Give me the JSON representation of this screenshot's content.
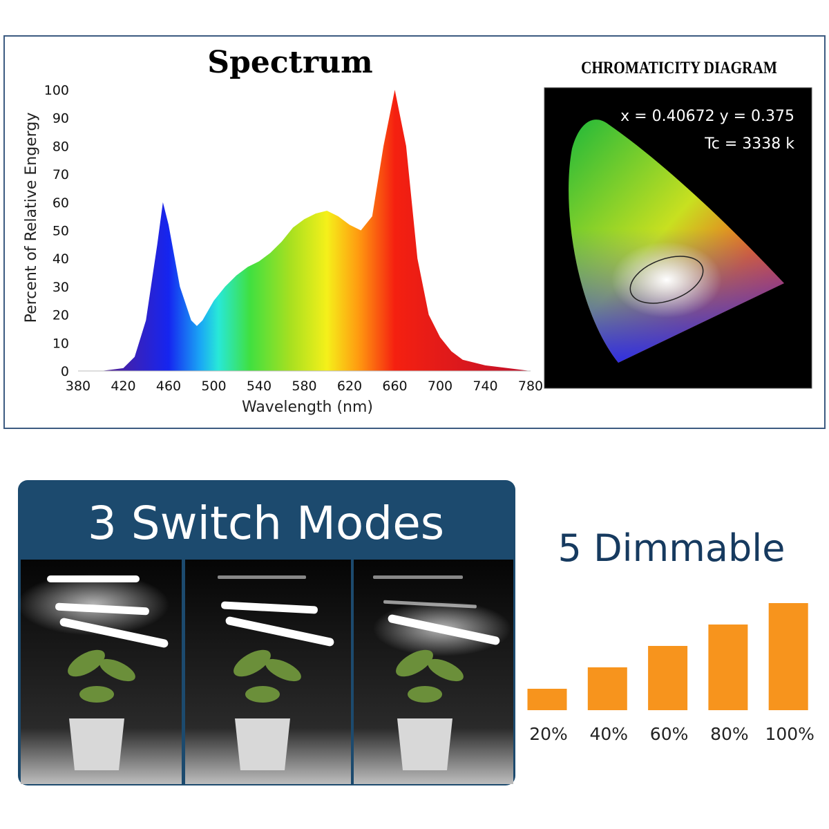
{
  "chart_data": [
    {
      "type": "area",
      "title": "Spectrum",
      "x_label": "Wavelength (nm)",
      "y_label": "Percent of Relative Engergy",
      "x": [
        380,
        390,
        400,
        410,
        420,
        430,
        440,
        450,
        455,
        460,
        470,
        480,
        485,
        490,
        500,
        510,
        520,
        530,
        540,
        550,
        560,
        570,
        580,
        590,
        600,
        610,
        620,
        630,
        640,
        650,
        660,
        670,
        680,
        690,
        700,
        710,
        720,
        740,
        760,
        780
      ],
      "values": [
        0,
        0,
        0,
        0.5,
        1,
        5,
        18,
        45,
        60,
        52,
        30,
        18,
        16,
        18,
        25,
        30,
        34,
        37,
        39,
        42,
        46,
        51,
        54,
        56,
        57,
        55,
        52,
        50,
        55,
        80,
        100,
        80,
        40,
        20,
        12,
        7,
        4,
        2,
        1,
        0
      ],
      "xlim": [
        380,
        780
      ],
      "xticks": [
        380,
        420,
        460,
        500,
        540,
        580,
        620,
        660,
        700,
        740,
        780
      ],
      "ylim": [
        0,
        100
      ],
      "yticks": [
        0,
        10,
        20,
        30,
        40,
        50,
        60,
        70,
        80,
        90,
        100
      ]
    },
    {
      "type": "bar",
      "title": "5 Dimmable",
      "values": [
        20,
        40,
        60,
        80,
        100
      ],
      "value_labels": [
        "20%",
        "40%",
        "60%",
        "80%",
        "100%"
      ],
      "color": "#f7941d"
    }
  ],
  "chromaticity": {
    "title": "CHROMATICITY DIAGRAM",
    "coordinates": "x = 0.40672 y = 0.375",
    "color_temperature": "Tc = 3338 k"
  },
  "modes": {
    "title": "3 Switch Modes"
  }
}
